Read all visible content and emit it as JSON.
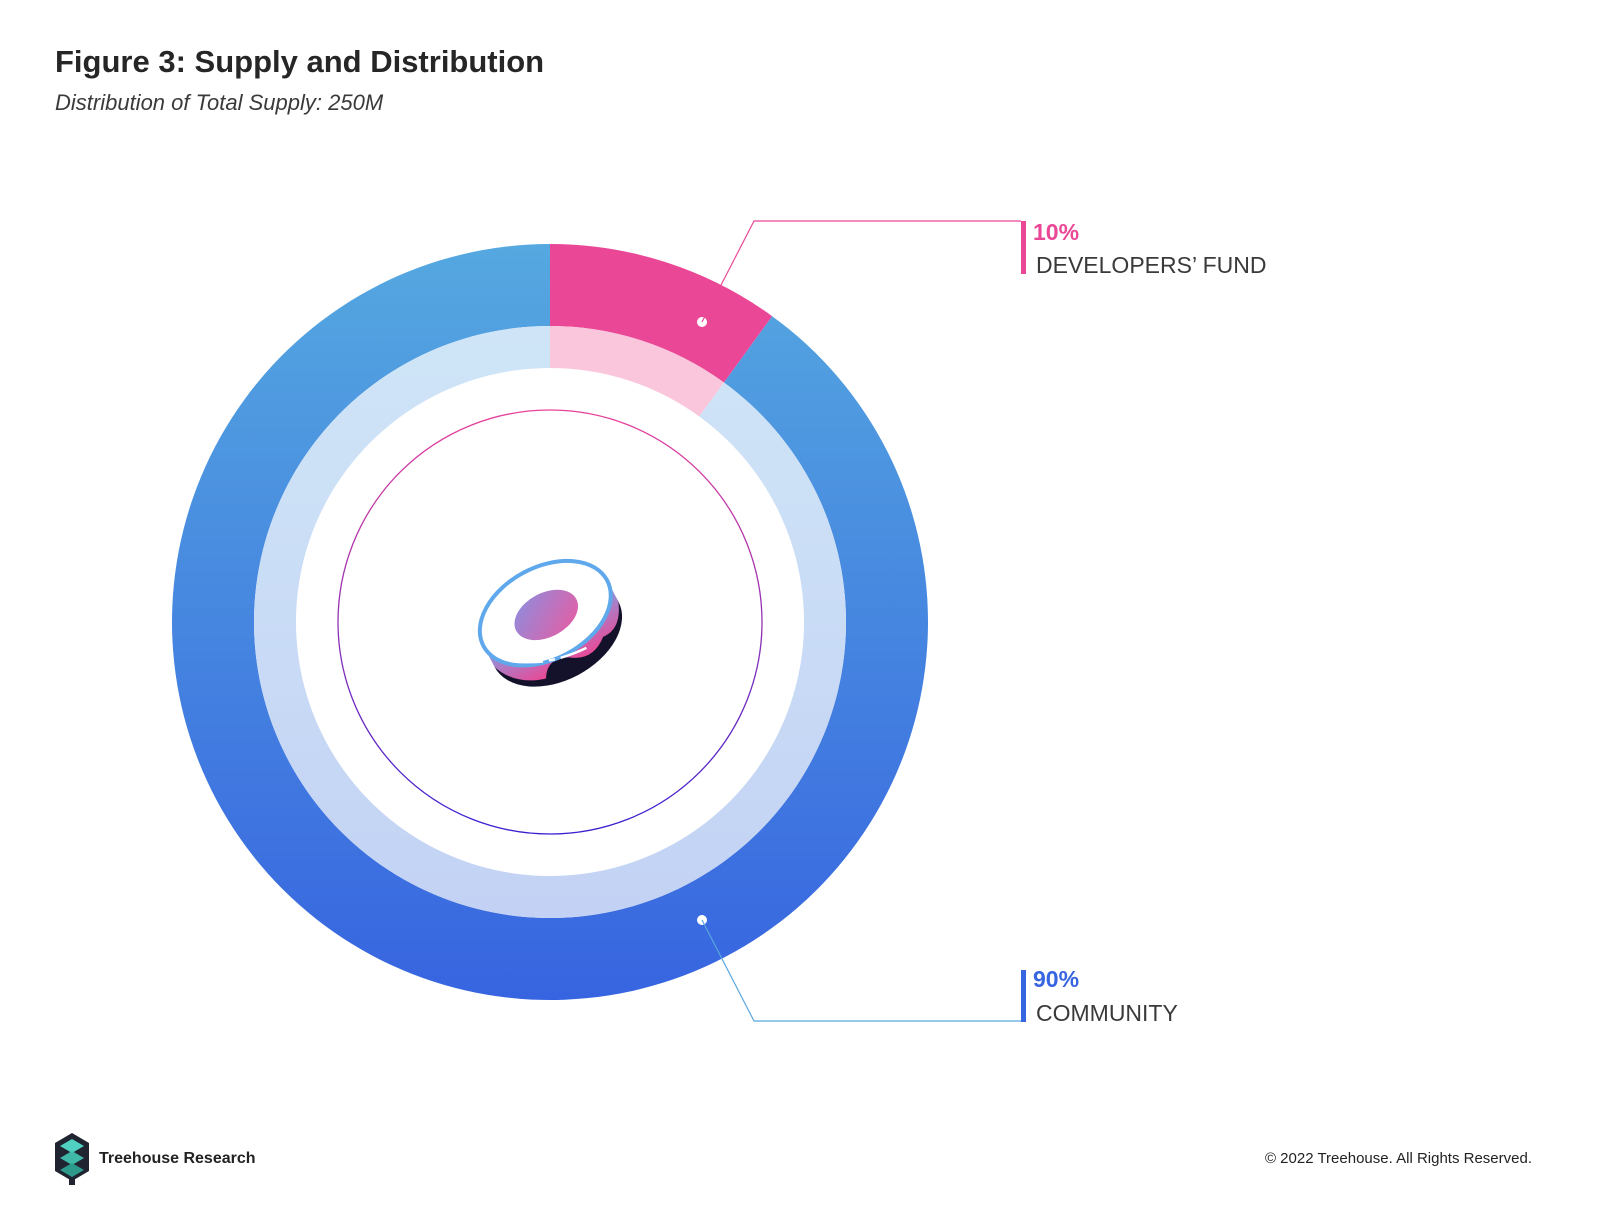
{
  "title": "Figure 3: Supply and Distribution",
  "subtitle": "Distribution of Total Supply: 250M",
  "chart_data": {
    "type": "pie",
    "variant": "donut",
    "title": "Figure 3: Supply and Distribution",
    "subtitle": "Distribution of Total Supply: 250M",
    "total": "250M",
    "slices": [
      {
        "label": "DEVELOPERS’ FUND",
        "value": 10,
        "value_label": "10%",
        "color": "#ea4896",
        "inner_color": "#f9c6dc",
        "label_position": "top-right"
      },
      {
        "label": "COMMUNITY",
        "value": 90,
        "value_label": "90%",
        "color": "#3764e0",
        "color_top": "#55a8e0",
        "inner_color": "#c6d6f4",
        "label_position": "bottom-right"
      }
    ],
    "center_icon": "sushi-logo-icon"
  },
  "footer": {
    "brand": "Treehouse Research",
    "brand_icon": "treehouse-logo-icon",
    "copyright": "© 2022 Treehouse. All Rights Reserved."
  }
}
